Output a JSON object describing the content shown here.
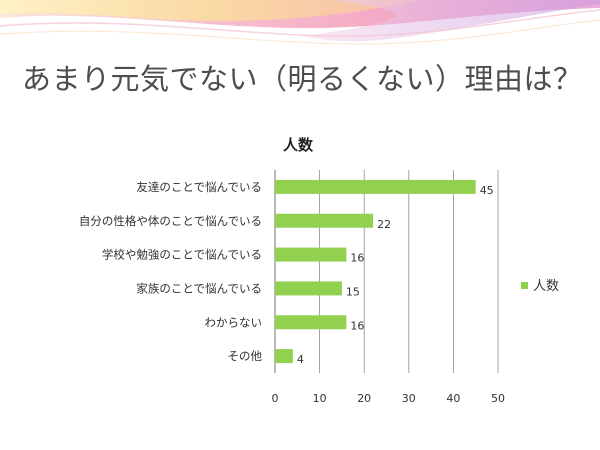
{
  "slide": {
    "title": "あまり元気でない（明るくない）理由は？"
  },
  "colors": {
    "bar": "#92d050",
    "gridline": "#8c8c8c",
    "text": "#333333",
    "banner_pink": "#f4b0c4",
    "banner_orange": "#f9d0a0",
    "banner_purple": "#d3a6df"
  },
  "chart_data": {
    "type": "bar",
    "orientation": "horizontal",
    "title": "人数",
    "categories": [
      "友達のことで悩んでいる",
      "自分の性格や体のことで悩んでいる",
      "学校や勉強のことで悩んでいる",
      "家族のことで悩んでいる",
      "わからない",
      "その他"
    ],
    "series": [
      {
        "name": "人数",
        "values": [
          45,
          22,
          16,
          15,
          16,
          4
        ]
      }
    ],
    "xlim": [
      0,
      50
    ],
    "xticks": [
      "0",
      "10",
      "20",
      "30",
      "40",
      "50"
    ],
    "data_labels": [
      "45",
      "22",
      "16",
      "15",
      "16",
      "4"
    ],
    "grid": true,
    "legend": "right"
  }
}
